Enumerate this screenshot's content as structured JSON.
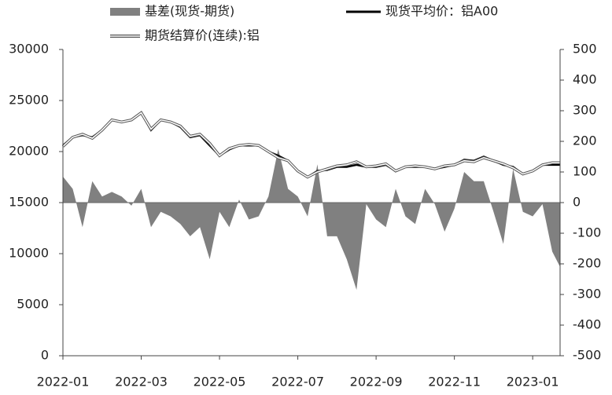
{
  "chart_data": {
    "type": "line",
    "x": [
      0,
      0.25,
      0.5,
      0.75,
      1,
      1.25,
      1.5,
      1.75,
      2,
      2.25,
      2.5,
      2.75,
      3,
      3.25,
      3.5,
      3.75,
      4,
      4.25,
      4.5,
      4.75,
      5,
      5.25,
      5.5,
      5.75,
      6,
      6.25,
      6.5,
      6.75,
      7,
      7.25,
      7.5,
      7.75,
      8,
      8.25,
      8.5,
      8.75,
      9,
      9.25,
      9.5,
      9.75,
      10,
      10.25,
      10.5,
      10.75,
      11,
      11.25,
      11.5,
      11.75,
      12,
      12.25,
      12.5,
      12.7
    ],
    "series": [
      {
        "name": "基差(现货-期货)",
        "color": "#808080",
        "axis": "y2",
        "style": "area",
        "values": [
          85,
          45,
          -80,
          70,
          20,
          35,
          20,
          -10,
          45,
          -80,
          -30,
          -45,
          -70,
          -110,
          -80,
          -185,
          -30,
          -80,
          10,
          -55,
          -45,
          20,
          175,
          45,
          20,
          -45,
          125,
          -110,
          -110,
          -185,
          -285,
          -5,
          -55,
          -80,
          45,
          -45,
          -70,
          45,
          -5,
          -95,
          -20,
          100,
          70,
          70,
          -30,
          -135,
          110,
          -30,
          -45,
          -5,
          -160,
          -210
        ]
      },
      {
        "name": "现货平均价：铝A00",
        "color": "#000000",
        "style": "line",
        "values": [
          20600,
          21400,
          21600,
          21400,
          22100,
          23100,
          22900,
          23100,
          23800,
          22100,
          23100,
          22900,
          22400,
          21400,
          21600,
          20600,
          19600,
          20200,
          20600,
          20600,
          20600,
          20000,
          19600,
          19100,
          18100,
          17500,
          18100,
          18200,
          18500,
          18500,
          18700,
          18500,
          18500,
          18700,
          18100,
          18500,
          18500,
          18500,
          18300,
          18500,
          18700,
          19200,
          19100,
          19500,
          19100,
          18700,
          18500,
          17800,
          18100,
          18700,
          18700,
          18700
        ]
      },
      {
        "name": "期货结算价(连续):铝",
        "color": "#ffffff",
        "style": "double",
        "values": [
          20500,
          21400,
          21700,
          21300,
          22100,
          23100,
          22900,
          23100,
          23800,
          22200,
          23100,
          22900,
          22500,
          21500,
          21700,
          20800,
          19600,
          20300,
          20600,
          20700,
          20600,
          20000,
          19400,
          19100,
          18100,
          17500,
          18000,
          18300,
          18600,
          18700,
          19000,
          18500,
          18600,
          18800,
          18100,
          18500,
          18600,
          18500,
          18300,
          18600,
          18700,
          19100,
          19000,
          19400,
          19100,
          18800,
          18400,
          17800,
          18100,
          18700,
          18900,
          18900
        ]
      }
    ],
    "xlim": [
      0,
      12.7
    ],
    "xticks": [
      {
        "value": 0,
        "label": "2022-01"
      },
      {
        "value": 2,
        "label": "2022-03"
      },
      {
        "value": 4,
        "label": "2022-05"
      },
      {
        "value": 6,
        "label": "2022-07"
      },
      {
        "value": 8,
        "label": "2022-09"
      },
      {
        "value": 10,
        "label": "2022-11"
      },
      {
        "value": 12,
        "label": "2023-01"
      }
    ],
    "ylim": [
      0,
      30000
    ],
    "yticks": [
      0,
      5000,
      10000,
      15000,
      20000,
      25000,
      30000
    ],
    "y2lim": [
      -500,
      500
    ],
    "y2ticks": [
      -500,
      -400,
      -300,
      -200,
      -100,
      0,
      100,
      200,
      300,
      400,
      500
    ]
  }
}
